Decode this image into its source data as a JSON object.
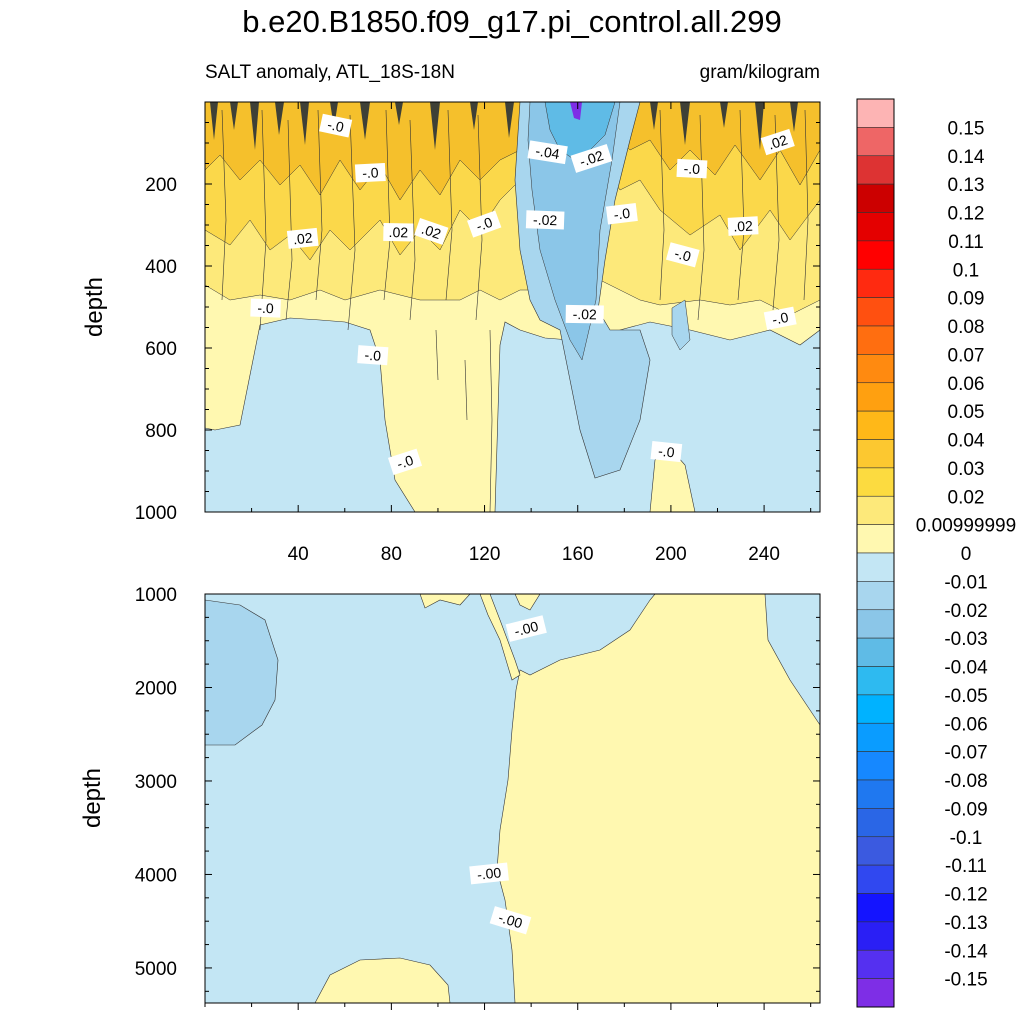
{
  "title": "b.e20.B1850.f09_g17.pi_control.all.299",
  "left_string": "SALT anomaly, ATL_18S-18N",
  "right_string": "gram/kilogram",
  "colors": {
    "light_yellow": "#fff8b0",
    "yellow": "#fde97a",
    "yellow2": "#fbd84a",
    "gold": "#f5c02c",
    "light_blue": "#c3e6f4",
    "blue2": "#a8d6ee",
    "blue3": "#8bc6e8",
    "blue4": "#5fbbe6",
    "purple": "#7e2ee6"
  },
  "chart_data": [
    {
      "type": "heatmap",
      "panel": "upper",
      "ylabel": "depth",
      "xlim": [
        0,
        264
      ],
      "ylim": [
        1000,
        0
      ],
      "xticks": [
        40,
        80,
        120,
        160,
        200,
        240
      ],
      "yticks": [
        200,
        400,
        600,
        800,
        1000
      ],
      "contour_labels": [
        {
          "text": "-.0",
          "x": 56,
          "y": 60
        },
        {
          "text": "-.0",
          "x": 71,
          "y": 175
        },
        {
          "text": ".02",
          "x": 42,
          "y": 335
        },
        {
          "text": ".02",
          "x": 83,
          "y": 320
        },
        {
          "text": ".02",
          "x": 97,
          "y": 318
        },
        {
          "text": "-.0",
          "x": 120,
          "y": 300
        },
        {
          "text": "-.04",
          "x": 147,
          "y": 125
        },
        {
          "text": "-.02",
          "x": 166,
          "y": 140
        },
        {
          "text": "-.02",
          "x": 146,
          "y": 290
        },
        {
          "text": "-.0",
          "x": 179,
          "y": 275
        },
        {
          "text": "-.0",
          "x": 209,
          "y": 165
        },
        {
          "text": ".02",
          "x": 246,
          "y": 100
        },
        {
          "text": ".02",
          "x": 231,
          "y": 305
        },
        {
          "text": "-.0",
          "x": 205,
          "y": 375
        },
        {
          "text": "-.02",
          "x": 163,
          "y": 520
        },
        {
          "text": "-.0",
          "x": 26,
          "y": 505
        },
        {
          "text": "-.0",
          "x": 72,
          "y": 620
        },
        {
          "text": "-.0",
          "x": 86,
          "y": 880
        },
        {
          "text": "-.0",
          "x": 198,
          "y": 855
        },
        {
          "text": "-.0",
          "x": 247,
          "y": 530
        }
      ]
    },
    {
      "type": "heatmap",
      "panel": "lower",
      "ylabel": "depth",
      "xlim": [
        0,
        264
      ],
      "ylim": [
        5375,
        1000
      ],
      "yticks": [
        1000,
        2000,
        3000,
        4000,
        5000
      ],
      "contour_labels": [
        {
          "text": "-.00",
          "x": 138,
          "y": 1380
        },
        {
          "text": "-.00",
          "x": 122,
          "y": 4000
        },
        {
          "text": "-.00",
          "x": 131,
          "y": 4500
        }
      ]
    },
    {
      "type": "colorbar",
      "levels": [
        "0.15",
        "0.14",
        "0.13",
        "0.12",
        "0.11",
        "0.1",
        "0.09",
        "0.08",
        "0.07",
        "0.06",
        "0.05",
        "0.04",
        "0.03",
        "0.02",
        "0.00999999",
        "0",
        "-0.01",
        "-0.02",
        "-0.03",
        "-0.04",
        "-0.05",
        "-0.06",
        "-0.07",
        "-0.08",
        "-0.09",
        "-0.1",
        "-0.11",
        "-0.12",
        "-0.13",
        "-0.14",
        "-0.15"
      ],
      "colors": [
        "#fdb4b4",
        "#ee6666",
        "#dd3333",
        "#cc0000",
        "#e40000",
        "#ff0000",
        "#ff2a10",
        "#ff5010",
        "#ff6e10",
        "#ff8a10",
        "#ffa010",
        "#ffb818",
        "#fcc830",
        "#fcdb40",
        "#fde97a",
        "#fff8b0",
        "#c3e6f4",
        "#a8d6ee",
        "#8bc6e8",
        "#5fbbe6",
        "#2ebaf0",
        "#00b2ff",
        "#0a9cff",
        "#1688ff",
        "#1f78f0",
        "#2a66e6",
        "#3b5ae0",
        "#3048f0",
        "#1414ff",
        "#2a1ff5",
        "#5530f0",
        "#7e2ee6"
      ]
    }
  ]
}
